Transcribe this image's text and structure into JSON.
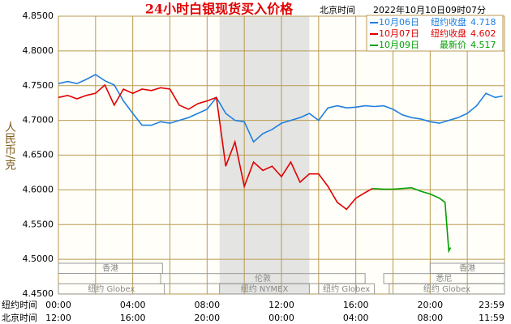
{
  "chart_data": {
    "type": "line",
    "title": "24小时白银现货买入价格",
    "subtitle_label": "北京时间",
    "subtitle_date": "2022年10月10日09时07分",
    "ylabel": "人民币/克",
    "x_row_label": "纽约时间",
    "x2_row_label": "北京时间",
    "xlim": [
      0,
      24
    ],
    "ylim": [
      4.45,
      4.85
    ],
    "yticks": [
      {
        "value": 4.85,
        "label": "4.8500"
      },
      {
        "value": 4.8,
        "label": "4.8000"
      },
      {
        "value": 4.75,
        "label": "4.7500"
      },
      {
        "value": 4.7,
        "label": "4.7000"
      },
      {
        "value": 4.65,
        "label": "4.6500"
      },
      {
        "value": 4.6,
        "label": "4.6000"
      },
      {
        "value": 4.55,
        "label": "4.5500"
      },
      {
        "value": 4.5,
        "label": "4.5000"
      },
      {
        "value": 4.45,
        "label": "4.4500"
      }
    ],
    "xticks": [
      {
        "value": 0,
        "label": "00:00"
      },
      {
        "value": 4,
        "label": "04:00"
      },
      {
        "value": 8,
        "label": "08:00"
      },
      {
        "value": 12,
        "label": "12:00"
      },
      {
        "value": 16,
        "label": "16:00"
      },
      {
        "value": 20,
        "label": "20:00"
      },
      {
        "value": 24,
        "label": "23:59"
      }
    ],
    "x2ticks": [
      {
        "value": 0,
        "label": "12:00"
      },
      {
        "value": 4,
        "label": "16:00"
      },
      {
        "value": 8,
        "label": "20:00"
      },
      {
        "value": 12,
        "label": "00:00"
      },
      {
        "value": 16,
        "label": "04:00"
      },
      {
        "value": 20,
        "label": "08:00"
      },
      {
        "value": 24,
        "label": "11:59"
      }
    ],
    "xgrid": [
      2,
      4,
      6,
      8,
      10,
      12,
      14,
      16,
      18,
      20,
      22
    ],
    "shaded": [
      8.67,
      13.5
    ],
    "series": [
      {
        "name": "10月06日",
        "legend_label": "纽约收盘",
        "legend_value": 4.718,
        "color": "#1e7fe0",
        "x": [
          0,
          0.5,
          1,
          1.5,
          2,
          2.5,
          3,
          3.5,
          4,
          4.5,
          5,
          5.5,
          6,
          6.5,
          7,
          7.5,
          8,
          8.5,
          9,
          9.5,
          10,
          10.5,
          11,
          11.5,
          12,
          12.5,
          13,
          13.5,
          14,
          14.5,
          15,
          15.5,
          16,
          16.5,
          17,
          17.5,
          18,
          18.5,
          19,
          19.5,
          20,
          20.5,
          21,
          21.5,
          22,
          22.5,
          23,
          23.5,
          23.9
        ],
        "values": [
          4.753,
          4.756,
          4.753,
          4.759,
          4.766,
          4.757,
          4.751,
          4.728,
          4.71,
          4.693,
          4.693,
          4.698,
          4.696,
          4.7,
          4.704,
          4.71,
          4.716,
          4.733,
          4.71,
          4.7,
          4.698,
          4.669,
          4.681,
          4.687,
          4.696,
          4.7,
          4.704,
          4.71,
          4.7,
          4.718,
          4.721,
          4.718,
          4.719,
          4.721,
          4.72,
          4.721,
          4.716,
          4.708,
          4.704,
          4.702,
          4.698,
          4.696,
          4.7,
          4.704,
          4.71,
          4.721,
          4.739,
          4.733,
          4.735
        ]
      },
      {
        "name": "10月07日",
        "legend_label": "纽约收盘",
        "legend_value": 4.602,
        "color": "#e00000",
        "x": [
          0,
          0.5,
          1,
          1.5,
          2,
          2.5,
          3,
          3.5,
          4,
          4.5,
          5,
          5.5,
          6,
          6.5,
          7,
          7.5,
          8,
          8.5,
          9,
          9.5,
          10,
          10.5,
          11,
          11.5,
          12,
          12.5,
          13,
          13.5,
          14,
          14.5,
          15,
          15.5,
          16,
          16.5,
          16.9
        ],
        "values": [
          4.733,
          4.736,
          4.731,
          4.736,
          4.739,
          4.751,
          4.722,
          4.745,
          4.739,
          4.745,
          4.743,
          4.747,
          4.745,
          4.722,
          4.716,
          4.724,
          4.728,
          4.733,
          4.634,
          4.669,
          4.605,
          4.64,
          4.628,
          4.634,
          4.619,
          4.64,
          4.611,
          4.623,
          4.623,
          4.605,
          4.582,
          4.572,
          4.588,
          4.596,
          4.602
        ]
      },
      {
        "name": "10月09日",
        "legend_label": "最新价",
        "legend_value": 4.517,
        "color": "#00a000",
        "x": [
          16.9,
          17.5,
          18,
          18.5,
          19,
          19.5,
          20,
          20.5,
          20.8,
          21,
          21.1
        ],
        "values": [
          4.602,
          4.601,
          4.601,
          4.602,
          4.603,
          4.598,
          4.594,
          4.588,
          4.582,
          4.512,
          4.517
        ]
      }
    ],
    "sessions": [
      {
        "label": "香港",
        "row": 0,
        "start": 0,
        "end": 5.6
      },
      {
        "label": "香港",
        "row": 0,
        "start": 20,
        "end": 24
      },
      {
        "label": "伦敦",
        "row": 1,
        "start": 5.5,
        "end": 16.5
      },
      {
        "label": "悉尼",
        "row": 1,
        "start": 17.5,
        "end": 24
      },
      {
        "label": "纽约 Globex",
        "row": 2,
        "start": 0,
        "end": 5.7
      },
      {
        "label": "纽约 NYMEX",
        "row": 2,
        "start": 8.67,
        "end": 13.5
      },
      {
        "label": "纽约 Globex",
        "row": 2,
        "start": 14,
        "end": 17
      },
      {
        "label": "纽约 Globex",
        "row": 2,
        "start": 17.8,
        "end": 24
      }
    ]
  }
}
